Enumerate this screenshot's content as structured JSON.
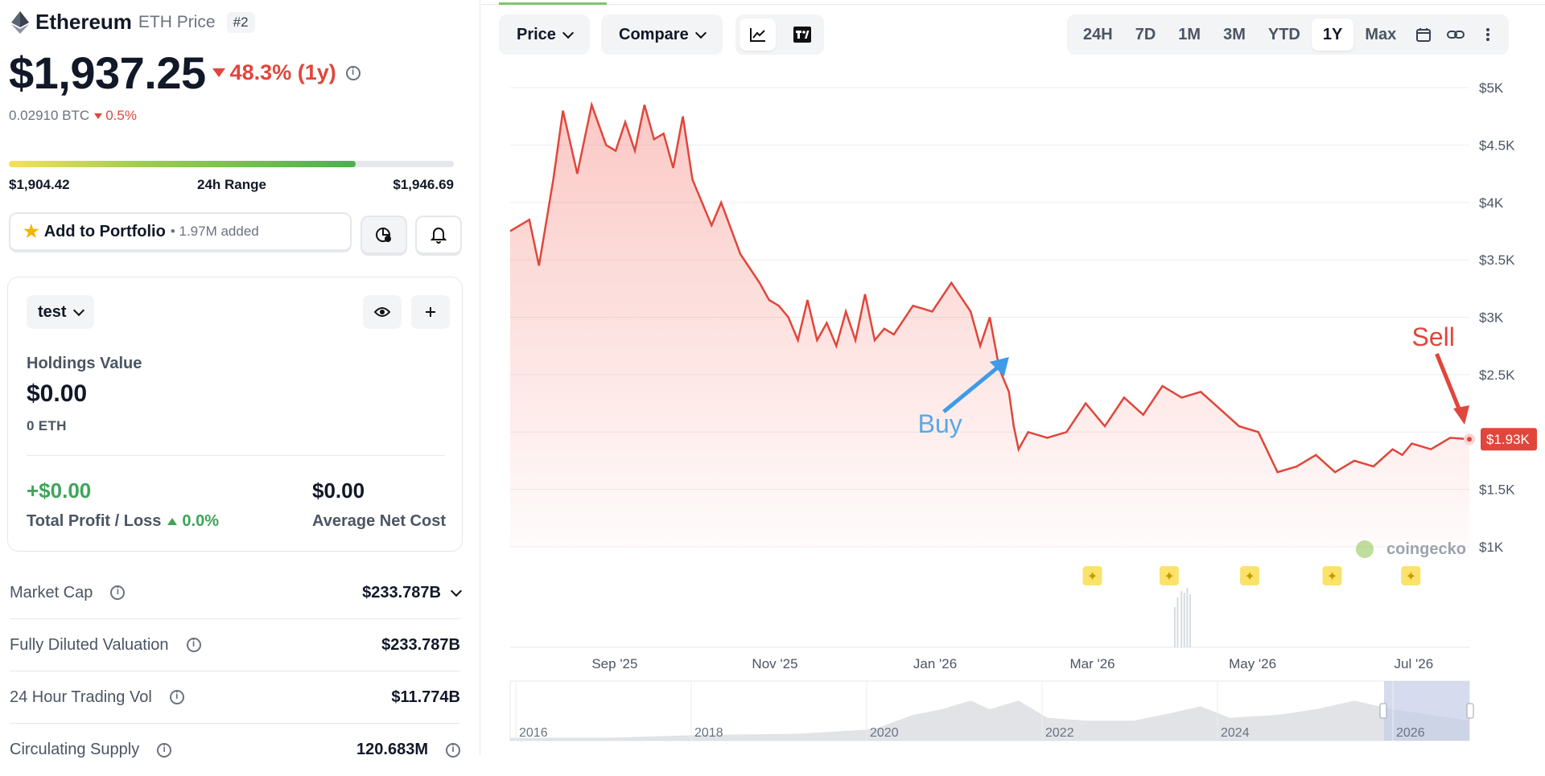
{
  "coin": {
    "name": "Ethereum",
    "symbol_label": "ETH Price",
    "rank": "#2",
    "price": "$1,937.25",
    "change_1y": "48.3% (1y)",
    "btc_price": "0.02910 BTC",
    "btc_change": "0.5%"
  },
  "range_24h": {
    "low": "$1,904.42",
    "label": "24h Range",
    "high": "$1,946.69",
    "position": 0.78
  },
  "portfolio_button": {
    "label": "Add to Portfolio",
    "added": "• 1.97M added"
  },
  "portfolio_card": {
    "name": "test",
    "holdings_label": "Holdings Value",
    "holdings_value": "$0.00",
    "holdings_eth": "0 ETH",
    "profit_value": "+$0.00",
    "profit_label": "Total Profit / Loss",
    "profit_pct": "0.0%",
    "avg_cost_value": "$0.00",
    "avg_cost_label": "Average Net Cost"
  },
  "stats": [
    {
      "label": "Market Cap",
      "value": "$233.787B"
    },
    {
      "label": "Fully Diluted Valuation",
      "value": "$233.787B"
    },
    {
      "label": "24 Hour Trading Vol",
      "value": "$11.774B"
    },
    {
      "label": "Circulating Supply",
      "value": "120.683M"
    }
  ],
  "toolbar": {
    "price_label": "Price",
    "compare_label": "Compare",
    "ranges": [
      "24H",
      "7D",
      "1M",
      "3M",
      "YTD",
      "1Y",
      "Max"
    ],
    "active_range": "1Y"
  },
  "chart_data": {
    "type": "area",
    "y_ticks": [
      "$5K",
      "$4.5K",
      "$4K",
      "$3.5K",
      "$3K",
      "$2.5K",
      "$1.5K",
      "$1K"
    ],
    "x_ticks": [
      "Sep '25",
      "Nov '25",
      "Jan '26",
      "Mar '26",
      "May '26",
      "Jul '26"
    ],
    "ylim": [
      1000,
      5000
    ],
    "current_label": "$1.93K",
    "watermark": "coingecko",
    "annotations": {
      "buy": "Buy",
      "sell": "Sell"
    },
    "navigator_years": [
      "2016",
      "2018",
      "2020",
      "2022",
      "2024",
      "2026"
    ],
    "series": [
      {
        "t": [
          0,
          0.02,
          0.03,
          0.045,
          0.055,
          0.07,
          0.085,
          0.1,
          0.11,
          0.12,
          0.13,
          0.14,
          0.15,
          0.16,
          0.17,
          0.18,
          0.19,
          0.2,
          0.21,
          0.22,
          0.24,
          0.26,
          0.27,
          0.28,
          0.29,
          0.3,
          0.31,
          0.32,
          0.33,
          0.34,
          0.35,
          0.36,
          0.37,
          0.38,
          0.39,
          0.4,
          0.42,
          0.44,
          0.46,
          0.48,
          0.49,
          0.5,
          0.51,
          0.52,
          0.525,
          0.53,
          0.54,
          0.56,
          0.58,
          0.6,
          0.62,
          0.64,
          0.66,
          0.68,
          0.7,
          0.72,
          0.74,
          0.76,
          0.78,
          0.8,
          0.82,
          0.84,
          0.86,
          0.87,
          0.88,
          0.9,
          0.92,
          0.93,
          0.94,
          0.96,
          0.98,
          1.0
        ],
        "v": [
          3750,
          3850,
          3450,
          4200,
          4800,
          4250,
          4850,
          4500,
          4450,
          4700,
          4450,
          4850,
          4550,
          4600,
          4300,
          4750,
          4200,
          4000,
          3800,
          4000,
          3550,
          3300,
          3150,
          3100,
          3000,
          2800,
          3150,
          2800,
          2950,
          2750,
          3050,
          2800,
          3200,
          2800,
          2900,
          2850,
          3100,
          3050,
          3300,
          3050,
          2750,
          3000,
          2550,
          2350,
          2050,
          1850,
          2000,
          1950,
          2000,
          2250,
          2050,
          2300,
          2150,
          2400,
          2300,
          2350,
          2200,
          2050,
          2000,
          1650,
          1700,
          1800,
          1650,
          1700,
          1750,
          1700,
          1850,
          1800,
          1900,
          1850,
          1950,
          1937
        ]
      }
    ]
  }
}
